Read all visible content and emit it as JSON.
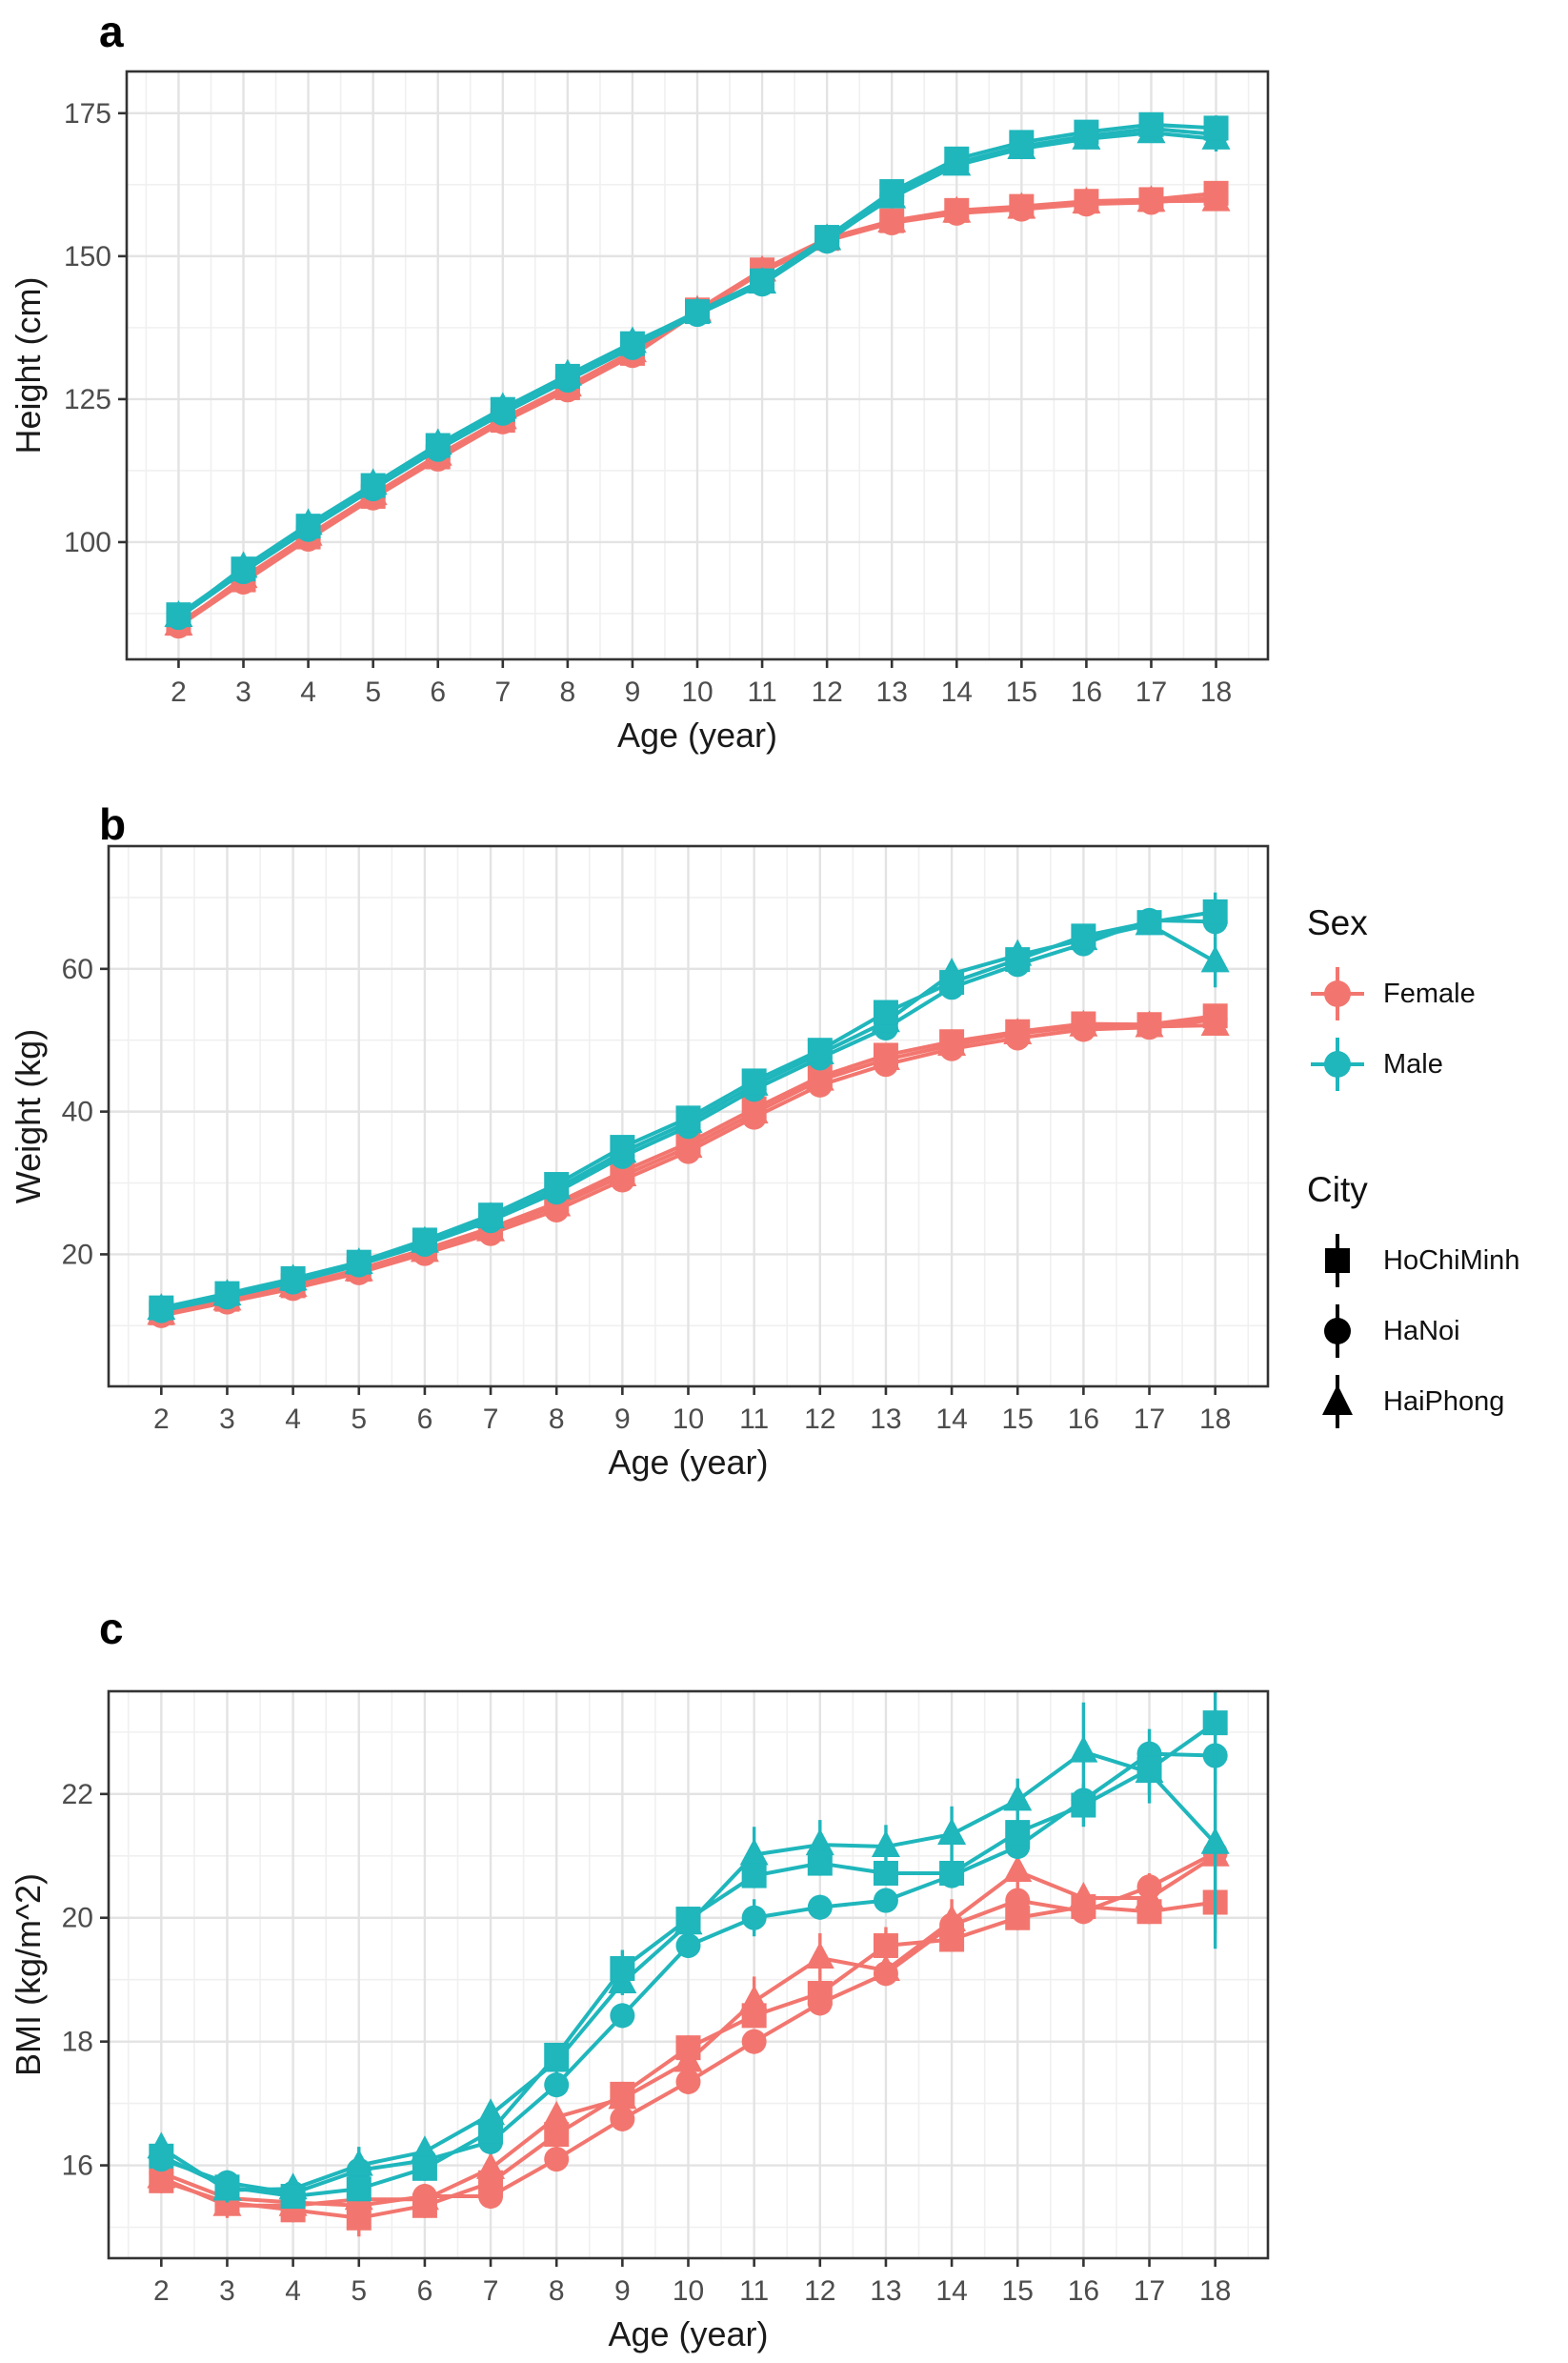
{
  "colors": {
    "female": "#F2766F",
    "male": "#1FB6BC",
    "city_marker": "#000000",
    "tick_label": "#4D4D4D",
    "axis_title": "#1A1A1A",
    "grid_major": "#E3E3E3",
    "grid_minor": "#F0F0F0",
    "panel_border": "#333333"
  },
  "legend": {
    "sex_title": "Sex",
    "sex_items": [
      {
        "label": "Female",
        "color_key": "female"
      },
      {
        "label": "Male",
        "color_key": "male"
      }
    ],
    "city_title": "City",
    "city_items": [
      {
        "label": "HoChiMinh",
        "marker": "square"
      },
      {
        "label": "HaNoi",
        "marker": "circle"
      },
      {
        "label": "HaiPhong",
        "marker": "triangle"
      }
    ]
  },
  "chart_data": [
    {
      "type": "line",
      "panel_label": "a",
      "xlabel": "Age (year)",
      "ylabel": "Height (cm)",
      "x": [
        2,
        3,
        4,
        5,
        6,
        7,
        8,
        9,
        10,
        11,
        12,
        13,
        14,
        15,
        16,
        17,
        18
      ],
      "xlim": [
        1.2,
        18.8
      ],
      "ylim": [
        79.5,
        182.3
      ],
      "yticks": [
        100,
        125,
        150,
        175
      ],
      "yticks_minor": [
        87.5,
        112.5,
        137.5,
        162.5
      ],
      "grid": true,
      "legend_position": "none",
      "default_err": 1.1,
      "series": [
        {
          "name": "Female HaNoi",
          "sex": "Female",
          "city": "HaNoi",
          "marker": "circle",
          "color_key": "female",
          "values": [
            85.3,
            93.0,
            100.5,
            107.7,
            114.5,
            121.0,
            126.6,
            132.6,
            140.2,
            147.2,
            152.7,
            155.8,
            157.5,
            158.2,
            159.1,
            159.4,
            160.3
          ],
          "err_overrides": {
            "18": 2.0
          }
        },
        {
          "name": "Female HaiPhong",
          "sex": "Female",
          "city": "HaiPhong",
          "marker": "triangle",
          "color_key": "female",
          "values": [
            85.5,
            93.8,
            101.2,
            108.3,
            115.2,
            121.6,
            127.3,
            133.3,
            140.4,
            147.4,
            152.9,
            156.0,
            157.7,
            158.4,
            159.3,
            159.6,
            159.7
          ],
          "err_overrides": {
            "18": 1.8
          }
        },
        {
          "name": "Female HoChiMinh",
          "sex": "Female",
          "city": "HoChiMinh",
          "marker": "square",
          "color_key": "female",
          "values": [
            85.8,
            93.4,
            100.9,
            108.0,
            114.9,
            121.3,
            127.0,
            133.0,
            140.6,
            147.6,
            153.1,
            156.2,
            158.0,
            158.7,
            159.6,
            159.9,
            161.0
          ],
          "err_overrides": {
            "18": 2.0
          }
        },
        {
          "name": "Male HaNoi",
          "sex": "Male",
          "city": "HaNoi",
          "marker": "circle",
          "color_key": "male",
          "values": [
            86.8,
            94.8,
            102.2,
            109.3,
            116.2,
            122.5,
            128.3,
            134.0,
            139.8,
            145.1,
            152.6,
            160.6,
            166.3,
            169.2,
            171.0,
            172.3,
            171.3
          ],
          "err_overrides": {
            "18": 2.0
          }
        },
        {
          "name": "Male HaiPhong",
          "sex": "Male",
          "city": "HaiPhong",
          "marker": "triangle",
          "color_key": "male",
          "values": [
            87.0,
            95.6,
            103.1,
            110.1,
            117.1,
            123.4,
            129.2,
            134.9,
            140.1,
            145.3,
            152.9,
            160.2,
            165.9,
            168.8,
            170.5,
            171.6,
            170.5
          ],
          "err_overrides": {
            "18": 2.2
          }
        },
        {
          "name": "Male HoChiMinh",
          "sex": "Male",
          "city": "HoChiMinh",
          "marker": "square",
          "color_key": "male",
          "values": [
            87.3,
            95.3,
            102.8,
            109.9,
            116.9,
            123.2,
            129.0,
            134.7,
            140.3,
            145.7,
            153.3,
            161.3,
            167.0,
            169.9,
            171.7,
            173.0,
            172.4
          ],
          "err_overrides": {
            "17": 1.6,
            "18": 2.2
          }
        }
      ]
    },
    {
      "type": "line",
      "panel_label": "b",
      "xlabel": "Age (year)",
      "ylabel": "Weight (kg)",
      "x": [
        2,
        3,
        4,
        5,
        6,
        7,
        8,
        9,
        10,
        11,
        12,
        13,
        14,
        15,
        16,
        17,
        18
      ],
      "xlim": [
        1.2,
        18.8
      ],
      "ylim": [
        1.5,
        77.2
      ],
      "yticks": [
        20,
        40,
        60
      ],
      "yticks_minor": [
        10,
        30,
        50,
        70
      ],
      "grid": true,
      "legend_position": "right",
      "default_err": 0.9,
      "series": [
        {
          "name": "Female HaNoi",
          "sex": "Female",
          "city": "HaNoi",
          "marker": "circle",
          "color_key": "female",
          "values": [
            11.4,
            13.3,
            15.2,
            17.4,
            20.1,
            22.9,
            26.2,
            30.4,
            34.4,
            39.2,
            43.7,
            46.6,
            48.8,
            50.3,
            51.5,
            51.8,
            52.9
          ],
          "err_overrides": {
            "12": 1.2,
            "18": 1.3
          }
        },
        {
          "name": "Female HaiPhong",
          "sex": "Female",
          "city": "HaiPhong",
          "marker": "triangle",
          "color_key": "female",
          "values": [
            11.6,
            13.6,
            15.5,
            17.7,
            20.4,
            23.3,
            26.8,
            31.0,
            35.0,
            39.8,
            44.4,
            47.3,
            49.3,
            50.9,
            52.0,
            51.9,
            52.1
          ],
          "err_overrides": {
            "18": 1.3
          }
        },
        {
          "name": "Female HoChiMinh",
          "sex": "Female",
          "city": "HoChiMinh",
          "marker": "square",
          "color_key": "female",
          "values": [
            11.8,
            13.7,
            15.6,
            17.9,
            20.7,
            23.7,
            27.2,
            31.6,
            35.6,
            40.4,
            44.9,
            47.9,
            49.8,
            51.2,
            52.3,
            52.2,
            53.4
          ],
          "err_overrides": {
            "18": 1.6
          }
        },
        {
          "name": "Male HaNoi",
          "sex": "Male",
          "city": "HaNoi",
          "marker": "circle",
          "color_key": "male",
          "values": [
            12.1,
            14.0,
            16.1,
            18.5,
            21.4,
            24.7,
            28.7,
            33.7,
            37.9,
            43.1,
            47.5,
            51.7,
            57.4,
            60.6,
            63.5,
            66.8,
            66.6
          ],
          "err_overrides": {
            "15": 1.4,
            "17": 1.6,
            "18": 2.0
          }
        },
        {
          "name": "Male HaiPhong",
          "sex": "Male",
          "city": "HaiPhong",
          "marker": "triangle",
          "color_key": "male",
          "values": [
            12.3,
            14.3,
            16.4,
            18.7,
            21.7,
            25.1,
            29.2,
            34.3,
            38.5,
            43.7,
            48.1,
            52.6,
            59.3,
            61.9,
            64.1,
            66.2,
            61.0
          ],
          "err_overrides": {
            "14": 1.6,
            "18": 3.6
          }
        },
        {
          "name": "Male HoChiMinh",
          "sex": "Male",
          "city": "HoChiMinh",
          "marker": "square",
          "color_key": "male",
          "values": [
            12.5,
            14.5,
            16.6,
            18.9,
            22.0,
            25.5,
            29.8,
            35.0,
            39.1,
            44.3,
            48.6,
            53.9,
            58.1,
            61.3,
            64.6,
            66.5,
            68.0
          ],
          "err_overrides": {
            "13": 1.4,
            "17": 1.5,
            "18": 2.7
          }
        }
      ]
    },
    {
      "type": "line",
      "panel_label": "c",
      "xlabel": "Age (year)",
      "ylabel": "BMI (kg/m^2)",
      "x": [
        2,
        3,
        4,
        5,
        6,
        7,
        8,
        9,
        10,
        11,
        12,
        13,
        14,
        15,
        16,
        17,
        18
      ],
      "xlim": [
        1.2,
        18.8
      ],
      "ylim": [
        14.5,
        23.66
      ],
      "yticks": [
        16,
        18,
        20,
        22
      ],
      "yticks_minor": [
        15,
        17,
        19,
        21,
        23
      ],
      "grid": true,
      "legend_position": "none",
      "default_err": 0.2,
      "series": [
        {
          "name": "Female HaNoi",
          "sex": "Female",
          "city": "HaNoi",
          "marker": "circle",
          "color_key": "female",
          "values": [
            15.88,
            15.47,
            15.4,
            15.35,
            15.5,
            15.5,
            16.1,
            16.75,
            17.35,
            18.0,
            18.62,
            19.1,
            19.88,
            20.28,
            20.1,
            20.5,
            21.05
          ],
          "err_overrides": {
            "14": 0.3,
            "18": 1.3
          }
        },
        {
          "name": "Female HaiPhong",
          "sex": "Female",
          "city": "HaiPhong",
          "marker": "triangle",
          "color_key": "female",
          "values": [
            15.8,
            15.35,
            15.35,
            15.45,
            15.45,
            15.95,
            16.78,
            17.08,
            17.68,
            18.65,
            19.35,
            19.15,
            19.95,
            20.75,
            20.32,
            20.32,
            21.0
          ],
          "err_overrides": {
            "7": 0.35,
            "11": 0.4,
            "12": 0.4,
            "14": 0.35,
            "15": 0.45,
            "17": 0.4,
            "18": 0.55
          }
        },
        {
          "name": "Female HoChiMinh",
          "sex": "Female",
          "city": "HoChiMinh",
          "marker": "square",
          "color_key": "female",
          "values": [
            15.75,
            15.4,
            15.28,
            15.15,
            15.35,
            15.72,
            16.5,
            17.15,
            17.9,
            18.42,
            18.78,
            19.55,
            19.65,
            20.0,
            20.18,
            20.1,
            20.25
          ],
          "err_overrides": {
            "5": 0.3,
            "8": 0.3,
            "13": 0.3,
            "18": 0.4
          }
        },
        {
          "name": "Male HaNoi",
          "sex": "Male",
          "city": "HaNoi",
          "marker": "circle",
          "color_key": "male",
          "values": [
            16.1,
            15.72,
            15.55,
            15.92,
            16.08,
            16.38,
            17.3,
            18.42,
            19.55,
            20.0,
            20.17,
            20.28,
            20.68,
            21.15,
            21.9,
            22.65,
            22.62
          ],
          "err_overrides": {
            "11": 0.3,
            "17": 0.4,
            "18": 0.45
          }
        },
        {
          "name": "Male HaiPhong",
          "sex": "Male",
          "city": "HaiPhong",
          "marker": "triangle",
          "color_key": "male",
          "values": [
            16.28,
            15.6,
            15.62,
            16.0,
            16.22,
            16.82,
            17.68,
            18.95,
            19.9,
            21.02,
            21.18,
            21.15,
            21.35,
            21.9,
            22.68,
            22.35,
            21.2
          ],
          "err_overrides": {
            "5": 0.3,
            "11": 0.45,
            "12": 0.4,
            "13": 0.35,
            "14": 0.45,
            "15": 0.35,
            "16": 0.8,
            "17": 0.5,
            "18": 1.7
          }
        },
        {
          "name": "Male HoChiMinh",
          "sex": "Male",
          "city": "HoChiMinh",
          "marker": "square",
          "color_key": "male",
          "values": [
            16.15,
            15.65,
            15.5,
            15.62,
            15.95,
            16.55,
            17.78,
            19.18,
            19.98,
            20.68,
            20.88,
            20.72,
            20.72,
            21.38,
            21.82,
            22.4,
            23.15
          ],
          "err_overrides": {
            "9": 0.3,
            "16": 0.35,
            "17": 0.4,
            "18": 0.5
          }
        }
      ]
    }
  ]
}
